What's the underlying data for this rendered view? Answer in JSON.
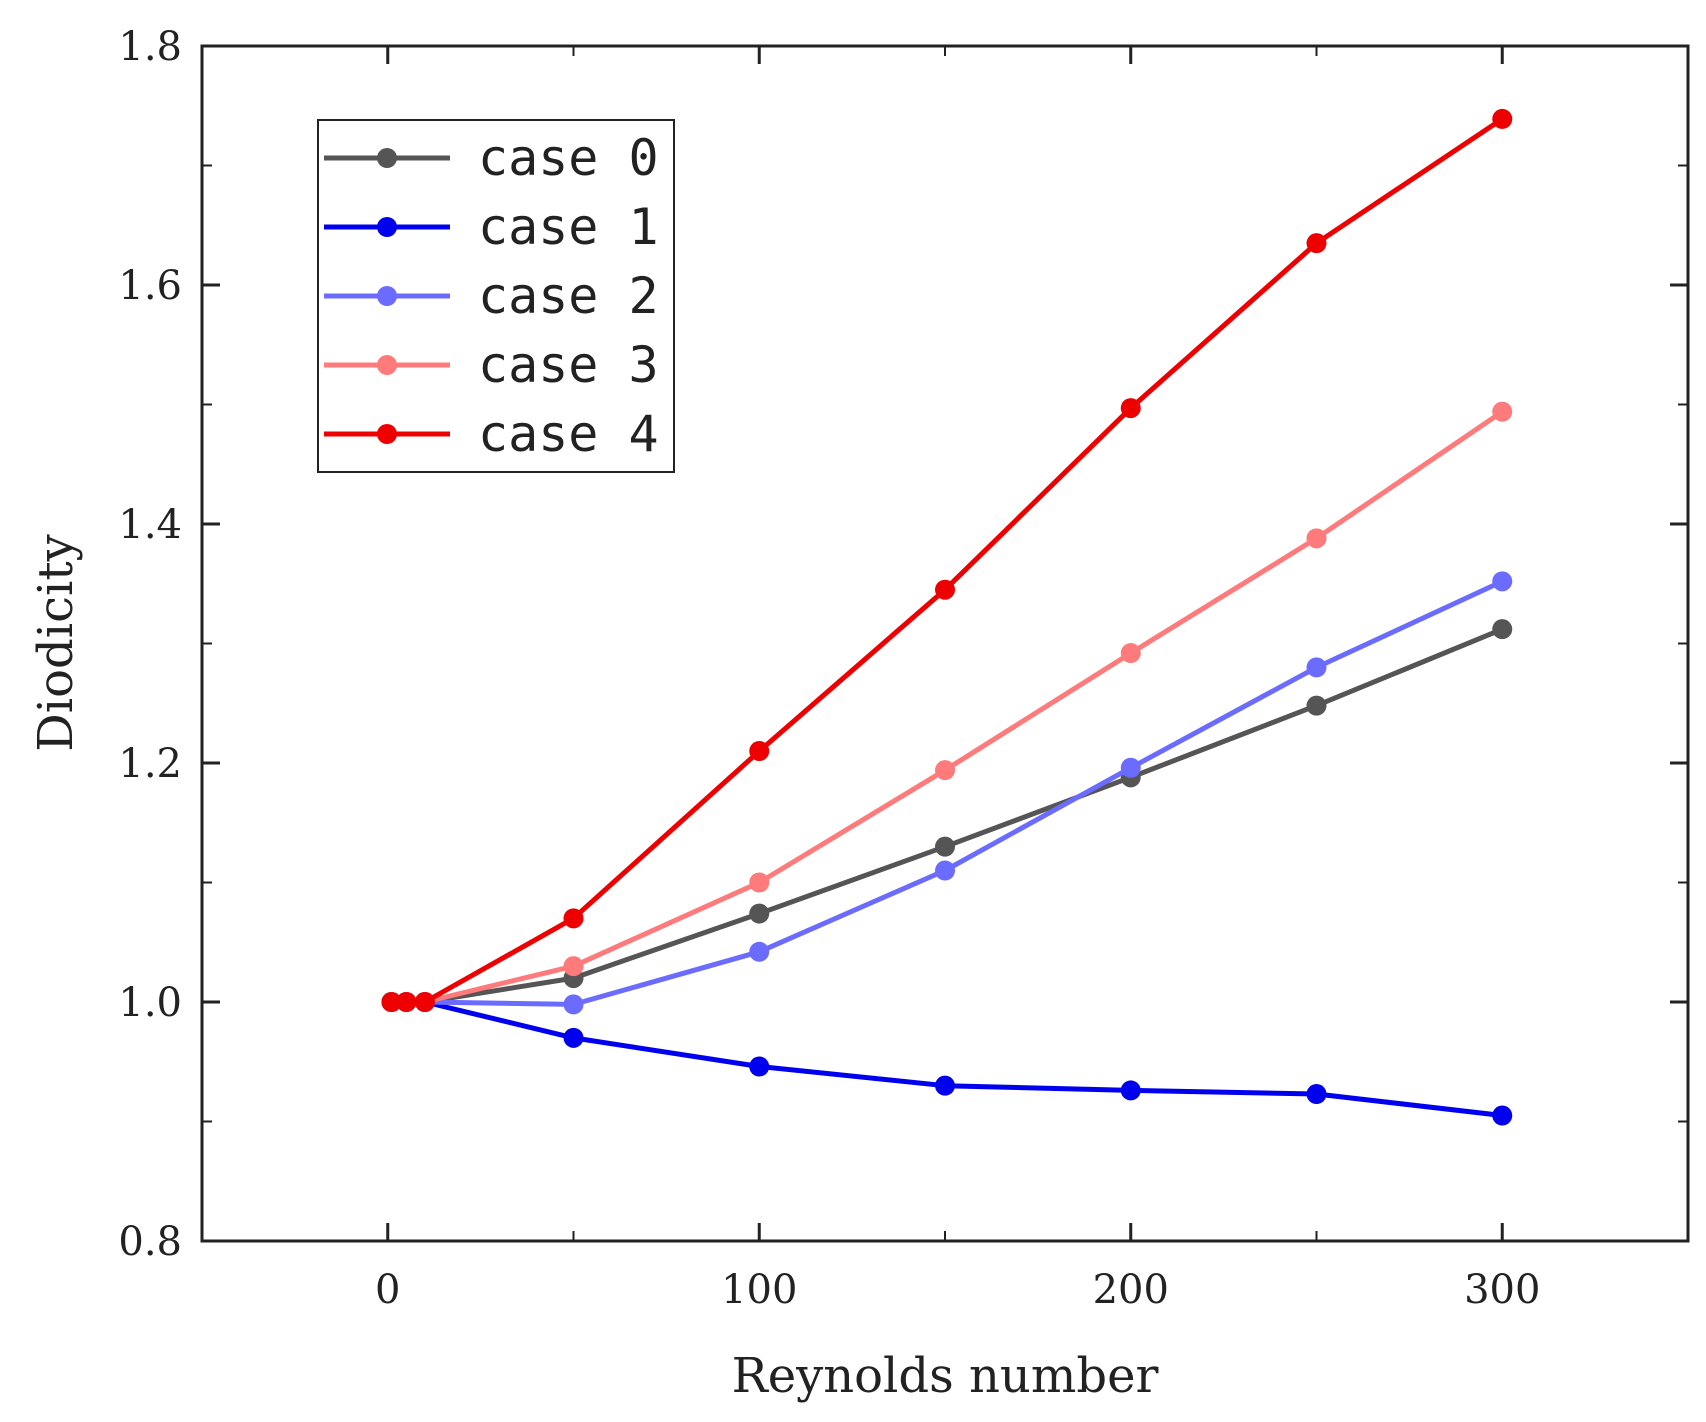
{
  "chart_data": {
    "type": "line",
    "xlabel": "Reynolds number",
    "ylabel": "Diodicity",
    "xlim": [
      -50,
      350
    ],
    "ylim": [
      0.8,
      1.8
    ],
    "xticks": [
      0,
      100,
      200,
      300
    ],
    "xtick_labels": [
      "0",
      "100",
      "200",
      "300"
    ],
    "yticks": [
      0.8,
      1.0,
      1.2,
      1.4,
      1.6,
      1.8
    ],
    "ytick_labels": [
      "0.8",
      "1.0",
      "1.2",
      "1.4",
      "1.6",
      "1.8"
    ],
    "legend_position": "top-left",
    "series": [
      {
        "name": "case 0",
        "color": "#555555",
        "opacity": 1.0,
        "x": [
          1,
          5,
          10,
          50,
          100,
          150,
          200,
          250,
          300
        ],
        "y": [
          1.0,
          1.0,
          1.0,
          1.02,
          1.074,
          1.13,
          1.188,
          1.248,
          1.312
        ]
      },
      {
        "name": "case 1",
        "color": "#0000ee",
        "opacity": 1.0,
        "x": [
          1,
          5,
          10,
          50,
          100,
          150,
          200,
          250,
          300
        ],
        "y": [
          1.0,
          1.0,
          1.0,
          0.97,
          0.946,
          0.93,
          0.926,
          0.923,
          0.905
        ]
      },
      {
        "name": "case 2",
        "color": "#6b6bff",
        "opacity": 1.0,
        "x": [
          1,
          5,
          10,
          50,
          100,
          150,
          200,
          250,
          300
        ],
        "y": [
          1.0,
          1.0,
          1.0,
          0.998,
          1.042,
          1.11,
          1.196,
          1.28,
          1.352
        ]
      },
      {
        "name": "case 3",
        "color": "#ff7a7a",
        "opacity": 1.0,
        "x": [
          1,
          5,
          10,
          50,
          100,
          150,
          200,
          250,
          300
        ],
        "y": [
          1.0,
          1.0,
          1.0,
          1.03,
          1.1,
          1.194,
          1.292,
          1.388,
          1.494
        ]
      },
      {
        "name": "case 4",
        "color": "#ee0000",
        "opacity": 1.0,
        "x": [
          1,
          5,
          10,
          50,
          100,
          150,
          200,
          250,
          300
        ],
        "y": [
          1.0,
          1.0,
          1.0,
          1.07,
          1.21,
          1.345,
          1.497,
          1.635,
          1.739
        ]
      }
    ]
  }
}
